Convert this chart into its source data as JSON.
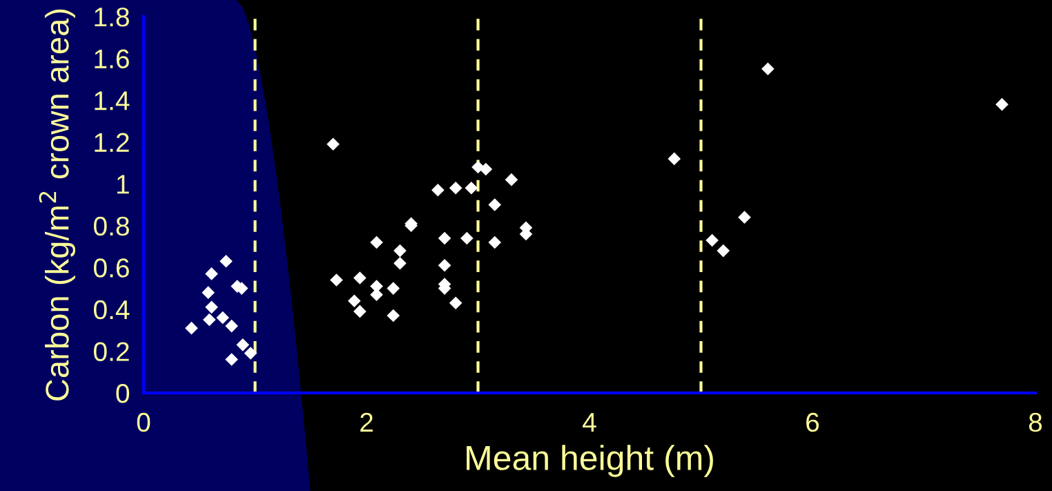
{
  "chart_data": {
    "type": "scatter",
    "xlabel": "Mean height (m)",
    "ylabel": "Carbon (kg/m$^{2}$ crown area)",
    "xlim": [
      0,
      8
    ],
    "xticks": [
      0,
      2,
      4,
      6,
      8
    ],
    "ylim": [
      0,
      1.8
    ],
    "yticks": [
      0,
      0.2,
      0.4,
      0.6,
      0.8,
      1,
      1.2,
      1.4,
      1.6,
      1.8
    ],
    "grid": false,
    "legend": false,
    "marker": "diamond",
    "series": [
      {
        "color": "#ffffff",
        "x": [
          0.74,
          0.61,
          0.84,
          0.88,
          0.58,
          0.61,
          0.59,
          0.71,
          0.43,
          0.79,
          0.89,
          0.96,
          0.79,
          1.7,
          3.0,
          3.07,
          3.3,
          2.64,
          2.8,
          2.94,
          3.15,
          2.4,
          2.4,
          2.7,
          2.9,
          3.15,
          2.09,
          2.3,
          2.3,
          2.7,
          1.73,
          1.94,
          2.09,
          2.7,
          2.7,
          2.24,
          2.09,
          1.89,
          1.94,
          2.8,
          2.24,
          3.43,
          3.43,
          4.76,
          5.6,
          7.7,
          5.39,
          5.1,
          5.2
        ],
        "values": [
          0.63,
          0.57,
          0.51,
          0.5,
          0.48,
          0.41,
          0.35,
          0.36,
          0.31,
          0.32,
          0.23,
          0.19,
          0.16,
          1.19,
          1.08,
          1.07,
          1.02,
          0.97,
          0.98,
          0.98,
          0.9,
          0.81,
          0.8,
          0.74,
          0.74,
          0.72,
          0.72,
          0.68,
          0.62,
          0.61,
          0.54,
          0.55,
          0.51,
          0.52,
          0.5,
          0.5,
          0.47,
          0.44,
          0.39,
          0.43,
          0.37,
          0.79,
          0.76,
          1.12,
          1.55,
          1.38,
          0.84,
          0.73,
          0.68
        ]
      }
    ],
    "ref_lines": [
      {
        "axis": "x",
        "value": 1,
        "color": "#ffff99",
        "line_style": "dashed"
      },
      {
        "axis": "x",
        "value": 3,
        "color": "#ffff99",
        "line_style": "dashed"
      },
      {
        "axis": "x",
        "value": 5,
        "color": "#ffff99",
        "line_style": "dashed"
      }
    ]
  }
}
